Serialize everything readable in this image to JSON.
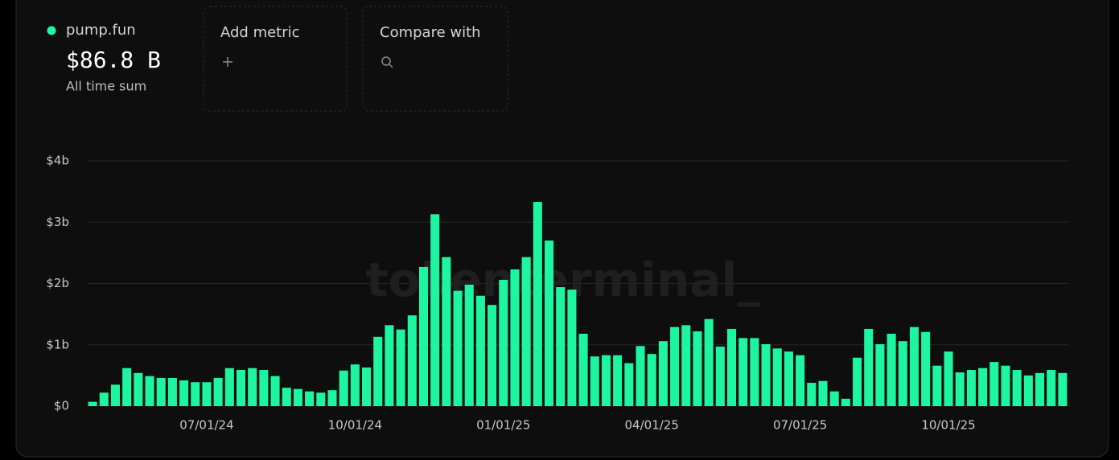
{
  "chart_data": {
    "type": "bar",
    "summary": {
      "value": "$86.8 B",
      "caption": "All time sum"
    },
    "controls": [
      "Add metric",
      "Compare with"
    ],
    "watermark": "tokenterminal_",
    "categories": [
      null,
      null,
      null,
      null,
      null,
      null,
      null,
      null,
      null,
      null,
      "07/01/24",
      null,
      null,
      null,
      null,
      null,
      null,
      null,
      null,
      null,
      null,
      null,
      null,
      "10/01/24",
      null,
      null,
      null,
      null,
      null,
      null,
      null,
      null,
      null,
      null,
      null,
      null,
      "01/01/25",
      null,
      null,
      null,
      null,
      null,
      null,
      null,
      null,
      null,
      null,
      null,
      null,
      "04/01/25",
      null,
      null,
      null,
      null,
      null,
      null,
      null,
      null,
      null,
      null,
      null,
      null,
      "07/01/25",
      null,
      null,
      null,
      null,
      null,
      null,
      null,
      null,
      null,
      null,
      null,
      null,
      "10/01/25",
      null,
      null,
      null,
      null,
      null,
      null,
      null,
      null,
      null,
      null
    ],
    "series": [
      {
        "name": "pump.fun",
        "color": "#1ef5a0",
        "values": [
          0.07,
          0.22,
          0.35,
          0.62,
          0.54,
          0.49,
          0.46,
          0.46,
          0.42,
          0.39,
          0.39,
          0.46,
          0.62,
          0.59,
          0.62,
          0.59,
          0.49,
          0.3,
          0.28,
          0.24,
          0.22,
          0.26,
          0.58,
          0.68,
          0.63,
          1.13,
          1.32,
          1.25,
          1.48,
          2.27,
          3.13,
          2.43,
          1.88,
          1.98,
          1.8,
          1.65,
          2.06,
          2.23,
          2.43,
          3.33,
          2.7,
          1.94,
          1.9,
          1.18,
          0.81,
          0.83,
          0.83,
          0.7,
          0.98,
          0.85,
          1.06,
          1.29,
          1.32,
          1.22,
          1.42,
          0.97,
          1.26,
          1.11,
          1.11,
          1.01,
          0.94,
          0.89,
          0.83,
          0.38,
          0.41,
          0.24,
          0.12,
          0.79,
          1.26,
          1.01,
          1.18,
          1.06,
          1.29,
          1.21,
          0.66,
          0.89,
          0.55,
          0.59,
          0.62,
          0.72,
          0.66,
          0.59,
          0.5,
          0.54,
          0.59,
          0.54
        ]
      }
    ],
    "ylim": [
      0,
      4
    ],
    "yticks": [
      {
        "value": 0,
        "label": "$0"
      },
      {
        "value": 1,
        "label": "$1b"
      },
      {
        "value": 2,
        "label": "$2b"
      },
      {
        "value": 3,
        "label": "$3b"
      },
      {
        "value": 4,
        "label": "$4b"
      }
    ],
    "grid": true
  }
}
